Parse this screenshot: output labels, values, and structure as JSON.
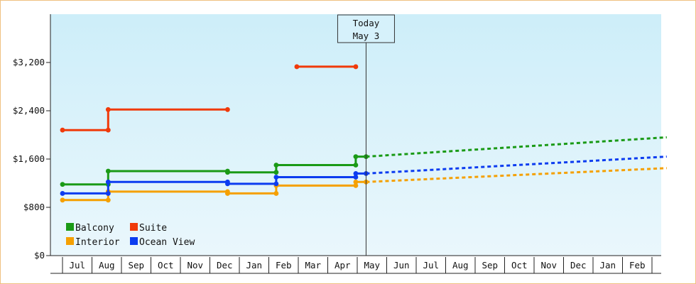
{
  "chart_data": {
    "type": "line",
    "ylim": [
      0,
      4000
    ],
    "y_ticks": [
      0,
      800,
      1600,
      2400,
      3200
    ],
    "y_tick_labels": [
      "$0",
      "$800",
      "$1,600",
      "$2,400",
      "$3,200"
    ],
    "x_range": [
      0,
      20.5
    ],
    "month_labels": [
      "Jul",
      "Aug",
      "Sep",
      "Oct",
      "Nov",
      "Dec",
      "Jan",
      "Feb",
      "Mar",
      "Apr",
      "May",
      "Jun",
      "Jul",
      "Aug",
      "Sep",
      "Oct",
      "Nov",
      "Dec",
      "Jan",
      "Feb"
    ],
    "today_x": 10.3,
    "today_label": [
      "Today",
      "May 3"
    ],
    "grid": false,
    "legend_position": "bottom-left",
    "background_gradient": [
      "#cdeef9",
      "#eaf7fc"
    ],
    "series": [
      {
        "name": "Balcony",
        "color": "#1a9a16",
        "actual": [
          [
            0,
            1180
          ],
          [
            1.55,
            1180
          ],
          [
            1.55,
            1400
          ],
          [
            5.6,
            1400
          ],
          [
            5.6,
            1380
          ],
          [
            7.25,
            1380
          ],
          [
            7.25,
            1500
          ],
          [
            9.95,
            1500
          ],
          [
            9.95,
            1640
          ],
          [
            10.3,
            1640
          ]
        ],
        "forecast": [
          [
            10.3,
            1640
          ],
          [
            20.5,
            1960
          ]
        ]
      },
      {
        "name": "Suite",
        "color": "#f03a0a",
        "actual": [
          [
            0,
            2080
          ],
          [
            1.55,
            2080
          ],
          [
            1.55,
            2420
          ],
          [
            5.6,
            2420
          ]
        ],
        "actual2": [
          [
            7.95,
            3130
          ],
          [
            9.95,
            3130
          ]
        ]
      },
      {
        "name": "Interior",
        "color": "#f5a000",
        "actual": [
          [
            0,
            920
          ],
          [
            1.55,
            920
          ],
          [
            1.55,
            1060
          ],
          [
            5.6,
            1060
          ],
          [
            5.6,
            1030
          ],
          [
            7.25,
            1030
          ],
          [
            7.25,
            1160
          ],
          [
            9.95,
            1160
          ],
          [
            9.95,
            1220
          ],
          [
            10.3,
            1220
          ]
        ],
        "forecast": [
          [
            10.3,
            1220
          ],
          [
            20.5,
            1450
          ]
        ]
      },
      {
        "name": "Ocean View",
        "color": "#0c3cf0",
        "actual": [
          [
            0,
            1030
          ],
          [
            1.55,
            1030
          ],
          [
            1.55,
            1220
          ],
          [
            5.6,
            1220
          ],
          [
            5.6,
            1190
          ],
          [
            7.25,
            1190
          ],
          [
            7.25,
            1300
          ],
          [
            9.95,
            1300
          ],
          [
            9.95,
            1360
          ],
          [
            10.3,
            1360
          ]
        ],
        "forecast": [
          [
            10.3,
            1360
          ],
          [
            20.5,
            1640
          ]
        ]
      }
    ]
  }
}
